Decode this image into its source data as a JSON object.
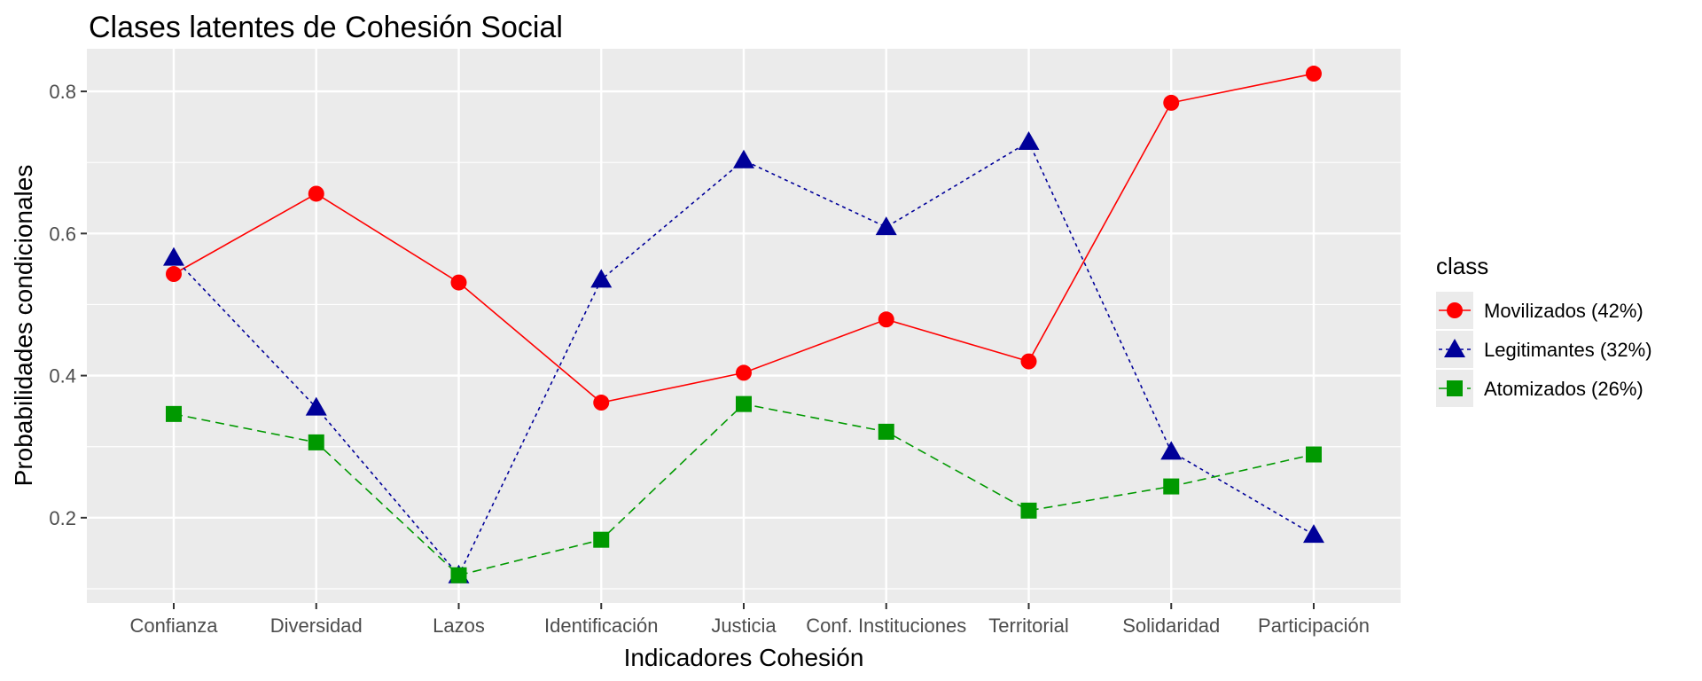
{
  "chart_data": {
    "type": "line",
    "title": "Clases latentes de Cohesión Social",
    "xlabel": "Indicadores Cohesión",
    "ylabel": "Probabilidades condicionales",
    "categories": [
      "Confianza",
      "Diversidad",
      "Lazos",
      "Identificación",
      "Justicia",
      "Conf. Instituciones",
      "Territorial",
      "Solidaridad",
      "Participación"
    ],
    "ylim": [
      0.08,
      0.86
    ],
    "yticks": [
      0.2,
      0.4,
      0.6,
      0.8
    ],
    "ytick_labels": [
      "0.2",
      "0.4",
      "0.6",
      "0.8"
    ],
    "grid": true,
    "legend": {
      "title": "class",
      "position": "right"
    },
    "series": [
      {
        "name": "Movilizados (42%)",
        "color": "#ff0000",
        "marker": "circle",
        "linestyle": "solid",
        "values": [
          0.543,
          0.656,
          0.531,
          0.362,
          0.404,
          0.479,
          0.42,
          0.784,
          0.825
        ]
      },
      {
        "name": "Legitimantes (32%)",
        "color": "#000099",
        "marker": "triangle",
        "linestyle": "dotted",
        "values": [
          0.566,
          0.355,
          0.119,
          0.535,
          0.703,
          0.609,
          0.729,
          0.293,
          0.176
        ]
      },
      {
        "name": "Atomizados (26%)",
        "color": "#009900",
        "marker": "square",
        "linestyle": "dashed",
        "values": [
          0.346,
          0.306,
          0.119,
          0.169,
          0.36,
          0.321,
          0.21,
          0.244,
          0.289
        ]
      }
    ]
  }
}
